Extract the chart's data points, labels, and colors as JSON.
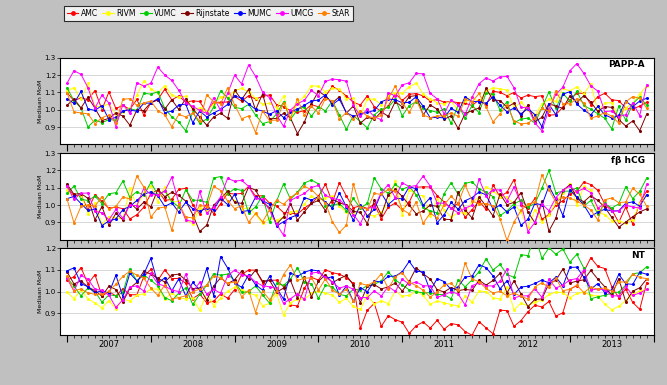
{
  "labs": [
    "AMC",
    "RIVM",
    "VUMC",
    "Rijnstate",
    "MUMC",
    "UMCG",
    "StAR"
  ],
  "colors": [
    "#FF0000",
    "#FFFF00",
    "#00CC00",
    "#800000",
    "#0000FF",
    "#FF00FF",
    "#FF8000"
  ],
  "n_months": 84,
  "start_year": 2007,
  "year_labels": [
    "2007",
    "2008",
    "2009",
    "2010",
    "2011",
    "2012",
    "2013"
  ],
  "ylim_pappa": [
    0.8,
    1.3
  ],
  "ylim_fbhcg": [
    0.8,
    1.3
  ],
  "ylim_nt": [
    0.8,
    1.2
  ],
  "yticks_pappa": [
    0.9,
    1.0,
    1.1,
    1.2,
    1.3
  ],
  "yticks_fbhcg": [
    0.9,
    1.0,
    1.1,
    1.2,
    1.3
  ],
  "yticks_nt": [
    0.9,
    1.0,
    1.1,
    1.2
  ],
  "ylabel": "Mediaan MoM",
  "panel_labels": [
    "PAPP-A",
    "fβ hCG",
    "NT"
  ],
  "bg_color": "#C0C0C0",
  "plot_bg_color": "#FFFFFF",
  "grid_color": "#C8C8C8"
}
